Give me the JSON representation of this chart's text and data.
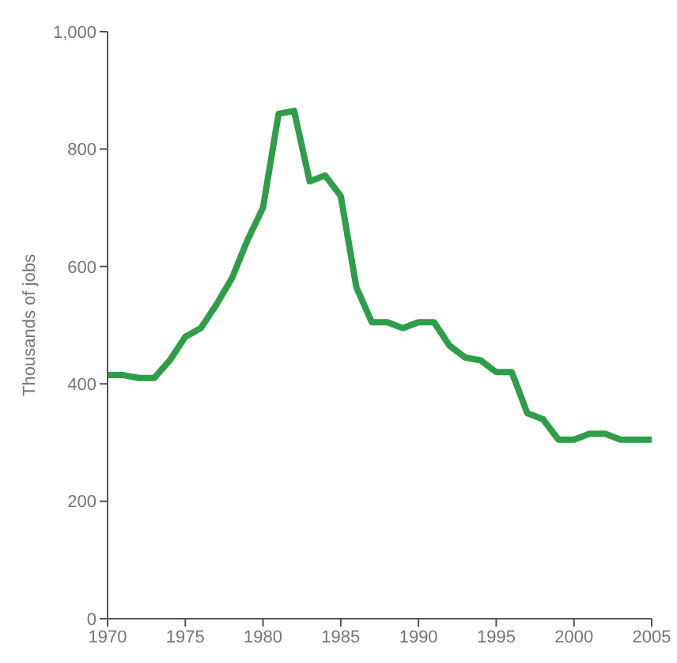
{
  "chart_data": {
    "type": "line",
    "ylabel": "Thousands of jobs",
    "x": [
      1970,
      1971,
      1972,
      1973,
      1974,
      1975,
      1976,
      1977,
      1978,
      1979,
      1980,
      1981,
      1982,
      1983,
      1984,
      1985,
      1986,
      1987,
      1988,
      1989,
      1990,
      1991,
      1992,
      1993,
      1994,
      1995,
      1996,
      1997,
      1998,
      1999,
      2000,
      2001,
      2002,
      2003,
      2004,
      2005
    ],
    "series": [
      {
        "color": "#2e9e48",
        "values": [
          415,
          415,
          410,
          410,
          440,
          480,
          495,
          535,
          580,
          645,
          700,
          860,
          865,
          745,
          755,
          720,
          565,
          505,
          505,
          495,
          505,
          505,
          465,
          445,
          440,
          420,
          420,
          350,
          340,
          305,
          305,
          315,
          315,
          305,
          305,
          305
        ]
      }
    ],
    "xlim": [
      1970,
      2005
    ],
    "xticks": [
      1970,
      1975,
      1980,
      1985,
      1990,
      1995,
      2000,
      2005
    ],
    "ylim": [
      0,
      1000
    ],
    "yticks": [
      0,
      200,
      400,
      600,
      800,
      {
        "value": 1000,
        "label": "1,000"
      }
    ],
    "grid": false,
    "legend": false,
    "marker": "none",
    "line_style": "solid"
  }
}
